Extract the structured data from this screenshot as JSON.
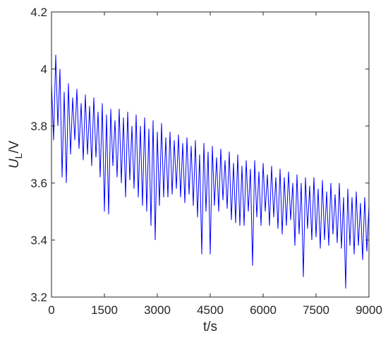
{
  "chart_data": {
    "type": "line",
    "title": "",
    "xlabel": "t/s",
    "ylabel": "U_L/V",
    "ylabel_parts": {
      "main": "U",
      "subscript": "L",
      "suffix": "/V"
    },
    "xlim": [
      0,
      9000
    ],
    "ylim": [
      3.2,
      4.2
    ],
    "xticks": [
      0,
      1500,
      3000,
      4500,
      6000,
      7500,
      9000
    ],
    "xtick_labels": [
      "0",
      "1500",
      "3000",
      "4500",
      "6000",
      "7500",
      "9000"
    ],
    "yticks": [
      3.2,
      3.4,
      3.6,
      3.8,
      4.0,
      4.2
    ],
    "ytick_labels": [
      "3.2",
      "3.4",
      "3.6",
      "3.8",
      "4",
      "4.2"
    ],
    "grid": false,
    "legend": "none",
    "series": [
      {
        "color": "#0000ff",
        "x": [
          0,
          60,
          120,
          180,
          240,
          300,
          360,
          420,
          480,
          540,
          600,
          660,
          720,
          780,
          840,
          900,
          960,
          1020,
          1080,
          1140,
          1200,
          1260,
          1320,
          1380,
          1440,
          1500,
          1560,
          1620,
          1680,
          1740,
          1800,
          1860,
          1920,
          1980,
          2040,
          2100,
          2160,
          2220,
          2280,
          2340,
          2400,
          2460,
          2520,
          2580,
          2640,
          2700,
          2760,
          2820,
          2880,
          2940,
          3000,
          3060,
          3120,
          3180,
          3240,
          3300,
          3360,
          3420,
          3480,
          3540,
          3600,
          3660,
          3720,
          3780,
          3840,
          3900,
          3960,
          4020,
          4080,
          4140,
          4200,
          4260,
          4320,
          4380,
          4440,
          4500,
          4560,
          4620,
          4680,
          4740,
          4800,
          4860,
          4920,
          4980,
          5040,
          5100,
          5160,
          5220,
          5280,
          5340,
          5400,
          5460,
          5520,
          5580,
          5640,
          5700,
          5760,
          5820,
          5880,
          5940,
          6000,
          6060,
          6120,
          6180,
          6240,
          6300,
          6360,
          6420,
          6480,
          6540,
          6600,
          6660,
          6720,
          6780,
          6840,
          6900,
          6960,
          7020,
          7080,
          7140,
          7200,
          7260,
          7320,
          7380,
          7440,
          7500,
          7560,
          7620,
          7680,
          7740,
          7800,
          7860,
          7920,
          7980,
          8040,
          8100,
          8160,
          8220,
          8280,
          8340,
          8400,
          8460,
          8520,
          8580,
          8640,
          8700,
          8760,
          8820,
          8880,
          8940,
          9000
        ],
        "y": [
          3.95,
          3.75,
          4.05,
          3.8,
          4.0,
          3.62,
          3.92,
          3.6,
          3.95,
          3.7,
          3.9,
          3.75,
          3.93,
          3.72,
          3.88,
          3.68,
          3.91,
          3.7,
          3.87,
          3.66,
          3.9,
          3.69,
          3.85,
          3.62,
          3.88,
          3.5,
          3.84,
          3.49,
          3.86,
          3.66,
          3.82,
          3.62,
          3.86,
          3.6,
          3.83,
          3.55,
          3.85,
          3.61,
          3.8,
          3.58,
          3.84,
          3.55,
          3.8,
          3.52,
          3.83,
          3.5,
          3.79,
          3.45,
          3.82,
          3.4,
          3.78,
          3.52,
          3.81,
          3.55,
          3.76,
          3.55,
          3.78,
          3.56,
          3.75,
          3.58,
          3.77,
          3.55,
          3.74,
          3.53,
          3.76,
          3.56,
          3.73,
          3.52,
          3.75,
          3.48,
          3.7,
          3.35,
          3.74,
          3.5,
          3.71,
          3.35,
          3.73,
          3.52,
          3.69,
          3.5,
          3.72,
          3.54,
          3.68,
          3.51,
          3.71,
          3.47,
          3.67,
          3.46,
          3.7,
          3.45,
          3.66,
          3.45,
          3.68,
          3.5,
          3.65,
          3.31,
          3.68,
          3.48,
          3.64,
          3.45,
          3.67,
          3.5,
          3.63,
          3.45,
          3.66,
          3.48,
          3.62,
          3.44,
          3.65,
          3.42,
          3.62,
          3.45,
          3.64,
          3.47,
          3.6,
          3.38,
          3.63,
          3.42,
          3.6,
          3.27,
          3.62,
          3.44,
          3.59,
          3.4,
          3.62,
          3.41,
          3.58,
          3.37,
          3.61,
          3.4,
          3.57,
          3.38,
          3.6,
          3.42,
          3.56,
          3.39,
          3.6,
          3.37,
          3.55,
          3.23,
          3.58,
          3.38,
          3.55,
          3.35,
          3.57,
          3.38,
          3.53,
          3.33,
          3.55,
          3.36,
          3.52
        ]
      }
    ]
  }
}
